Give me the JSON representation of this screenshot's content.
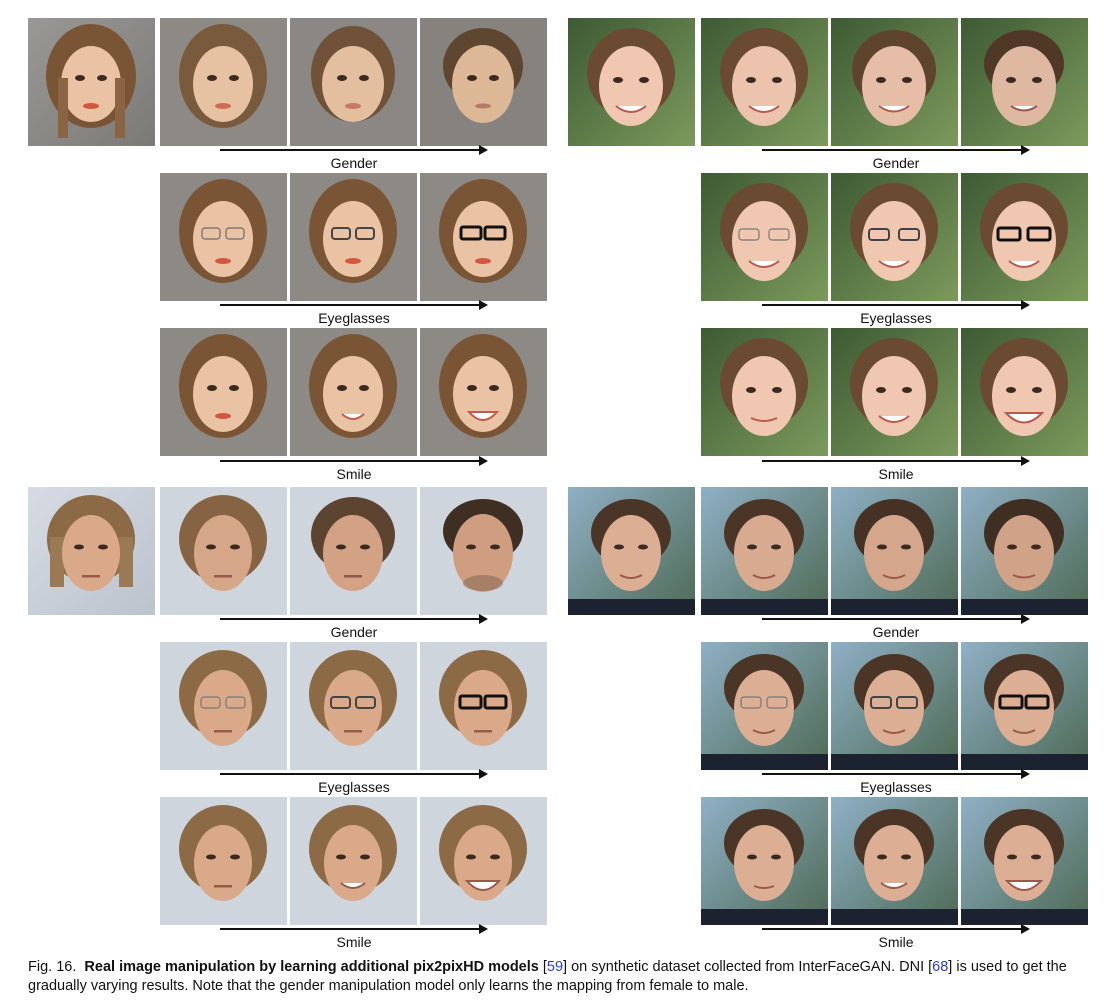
{
  "panels": {
    "emma": {
      "rows": [
        {
          "label": "Gender"
        },
        {
          "label": "Eyeglasses"
        },
        {
          "label": "Smile"
        }
      ]
    },
    "girl": {
      "rows": [
        {
          "label": "Gender"
        },
        {
          "label": "Eyeglasses"
        },
        {
          "label": "Smile"
        }
      ]
    },
    "brad": {
      "rows": [
        {
          "label": "Gender"
        },
        {
          "label": "Eyeglasses"
        },
        {
          "label": "Smile"
        }
      ]
    },
    "man": {
      "rows": [
        {
          "label": "Gender"
        },
        {
          "label": "Eyeglasses"
        },
        {
          "label": "Smile"
        }
      ]
    }
  },
  "caption": {
    "fig": "Fig. 16.",
    "title": "Real image manipulation by learning additional pix2pixHD models",
    "ref1": "59",
    "mid": "on synthetic dataset collected from InterFaceGAN. DNI",
    "ref2": "68",
    "tail": "is used to get the gradually varying results. Note that the gender manipulation model only learns the mapping from female to male."
  },
  "colors": {
    "emma_bg": "#8e8c89",
    "girl_bg": "#5f7a4a",
    "brad_bg": "#c9cfd8",
    "man_bg": "#6c8a8a",
    "ref_link": "#2a3bd1"
  }
}
